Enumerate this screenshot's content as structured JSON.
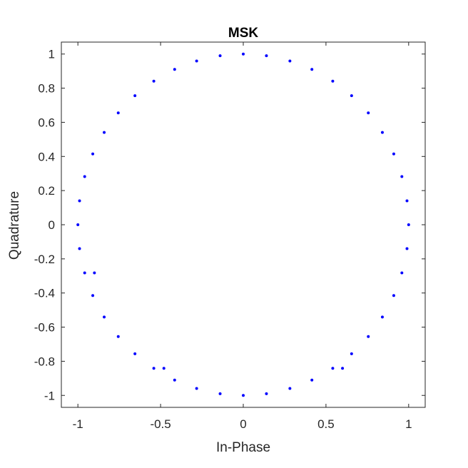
{
  "chart_data": {
    "type": "scatter",
    "title": "MSK",
    "xlabel": "In-Phase",
    "ylabel": "Quadrature",
    "xlim": [
      -1.1,
      1.1
    ],
    "ylim": [
      -1.07,
      1.07
    ],
    "xticks": [
      -1,
      -0.5,
      0,
      0.5,
      1
    ],
    "xtick_labels": [
      "-1",
      "-0.5",
      "0",
      "0.5",
      "1"
    ],
    "yticks": [
      -1,
      -0.8,
      -0.6,
      -0.4,
      -0.2,
      0,
      0.2,
      0.4,
      0.6,
      0.8,
      1
    ],
    "ytick_labels": [
      "-1",
      "-0.8",
      "-0.6",
      "-0.4",
      "-0.2",
      "0",
      "0.2",
      "0.4",
      "0.6",
      "0.8",
      "1"
    ],
    "grid": false,
    "series": [
      {
        "color": "#0000ff",
        "points": [
          [
            1.0,
            0.0
          ],
          [
            0.99,
            0.14
          ],
          [
            0.959,
            0.282
          ],
          [
            0.91,
            0.415
          ],
          [
            0.841,
            0.541
          ],
          [
            0.756,
            0.655
          ],
          [
            0.655,
            0.756
          ],
          [
            0.541,
            0.841
          ],
          [
            0.415,
            0.91
          ],
          [
            0.282,
            0.959
          ],
          [
            0.14,
            0.99
          ],
          [
            0.0,
            1.0
          ],
          [
            -0.14,
            0.99
          ],
          [
            -0.282,
            0.959
          ],
          [
            -0.415,
            0.91
          ],
          [
            -0.541,
            0.841
          ],
          [
            -0.655,
            0.756
          ],
          [
            -0.756,
            0.655
          ],
          [
            -0.841,
            0.541
          ],
          [
            -0.91,
            0.415
          ],
          [
            -0.959,
            0.282
          ],
          [
            -0.99,
            0.14
          ],
          [
            -1.0,
            0.0
          ],
          [
            -0.99,
            -0.14
          ],
          [
            -0.959,
            -0.282
          ],
          [
            -0.91,
            -0.415
          ],
          [
            -0.841,
            -0.541
          ],
          [
            -0.756,
            -0.655
          ],
          [
            -0.655,
            -0.756
          ],
          [
            -0.541,
            -0.841
          ],
          [
            -0.415,
            -0.91
          ],
          [
            -0.282,
            -0.959
          ],
          [
            -0.14,
            -0.99
          ],
          [
            0.0,
            -1.0
          ],
          [
            0.14,
            -0.99
          ],
          [
            0.282,
            -0.959
          ],
          [
            0.415,
            -0.91
          ],
          [
            0.541,
            -0.841
          ],
          [
            0.655,
            -0.756
          ],
          [
            0.756,
            -0.655
          ],
          [
            0.841,
            -0.541
          ],
          [
            0.91,
            -0.415
          ],
          [
            0.959,
            -0.282
          ],
          [
            0.99,
            -0.14
          ],
          [
            -0.9,
            -0.282
          ],
          [
            -0.48,
            -0.841
          ],
          [
            0.6,
            -0.841
          ]
        ]
      }
    ]
  }
}
